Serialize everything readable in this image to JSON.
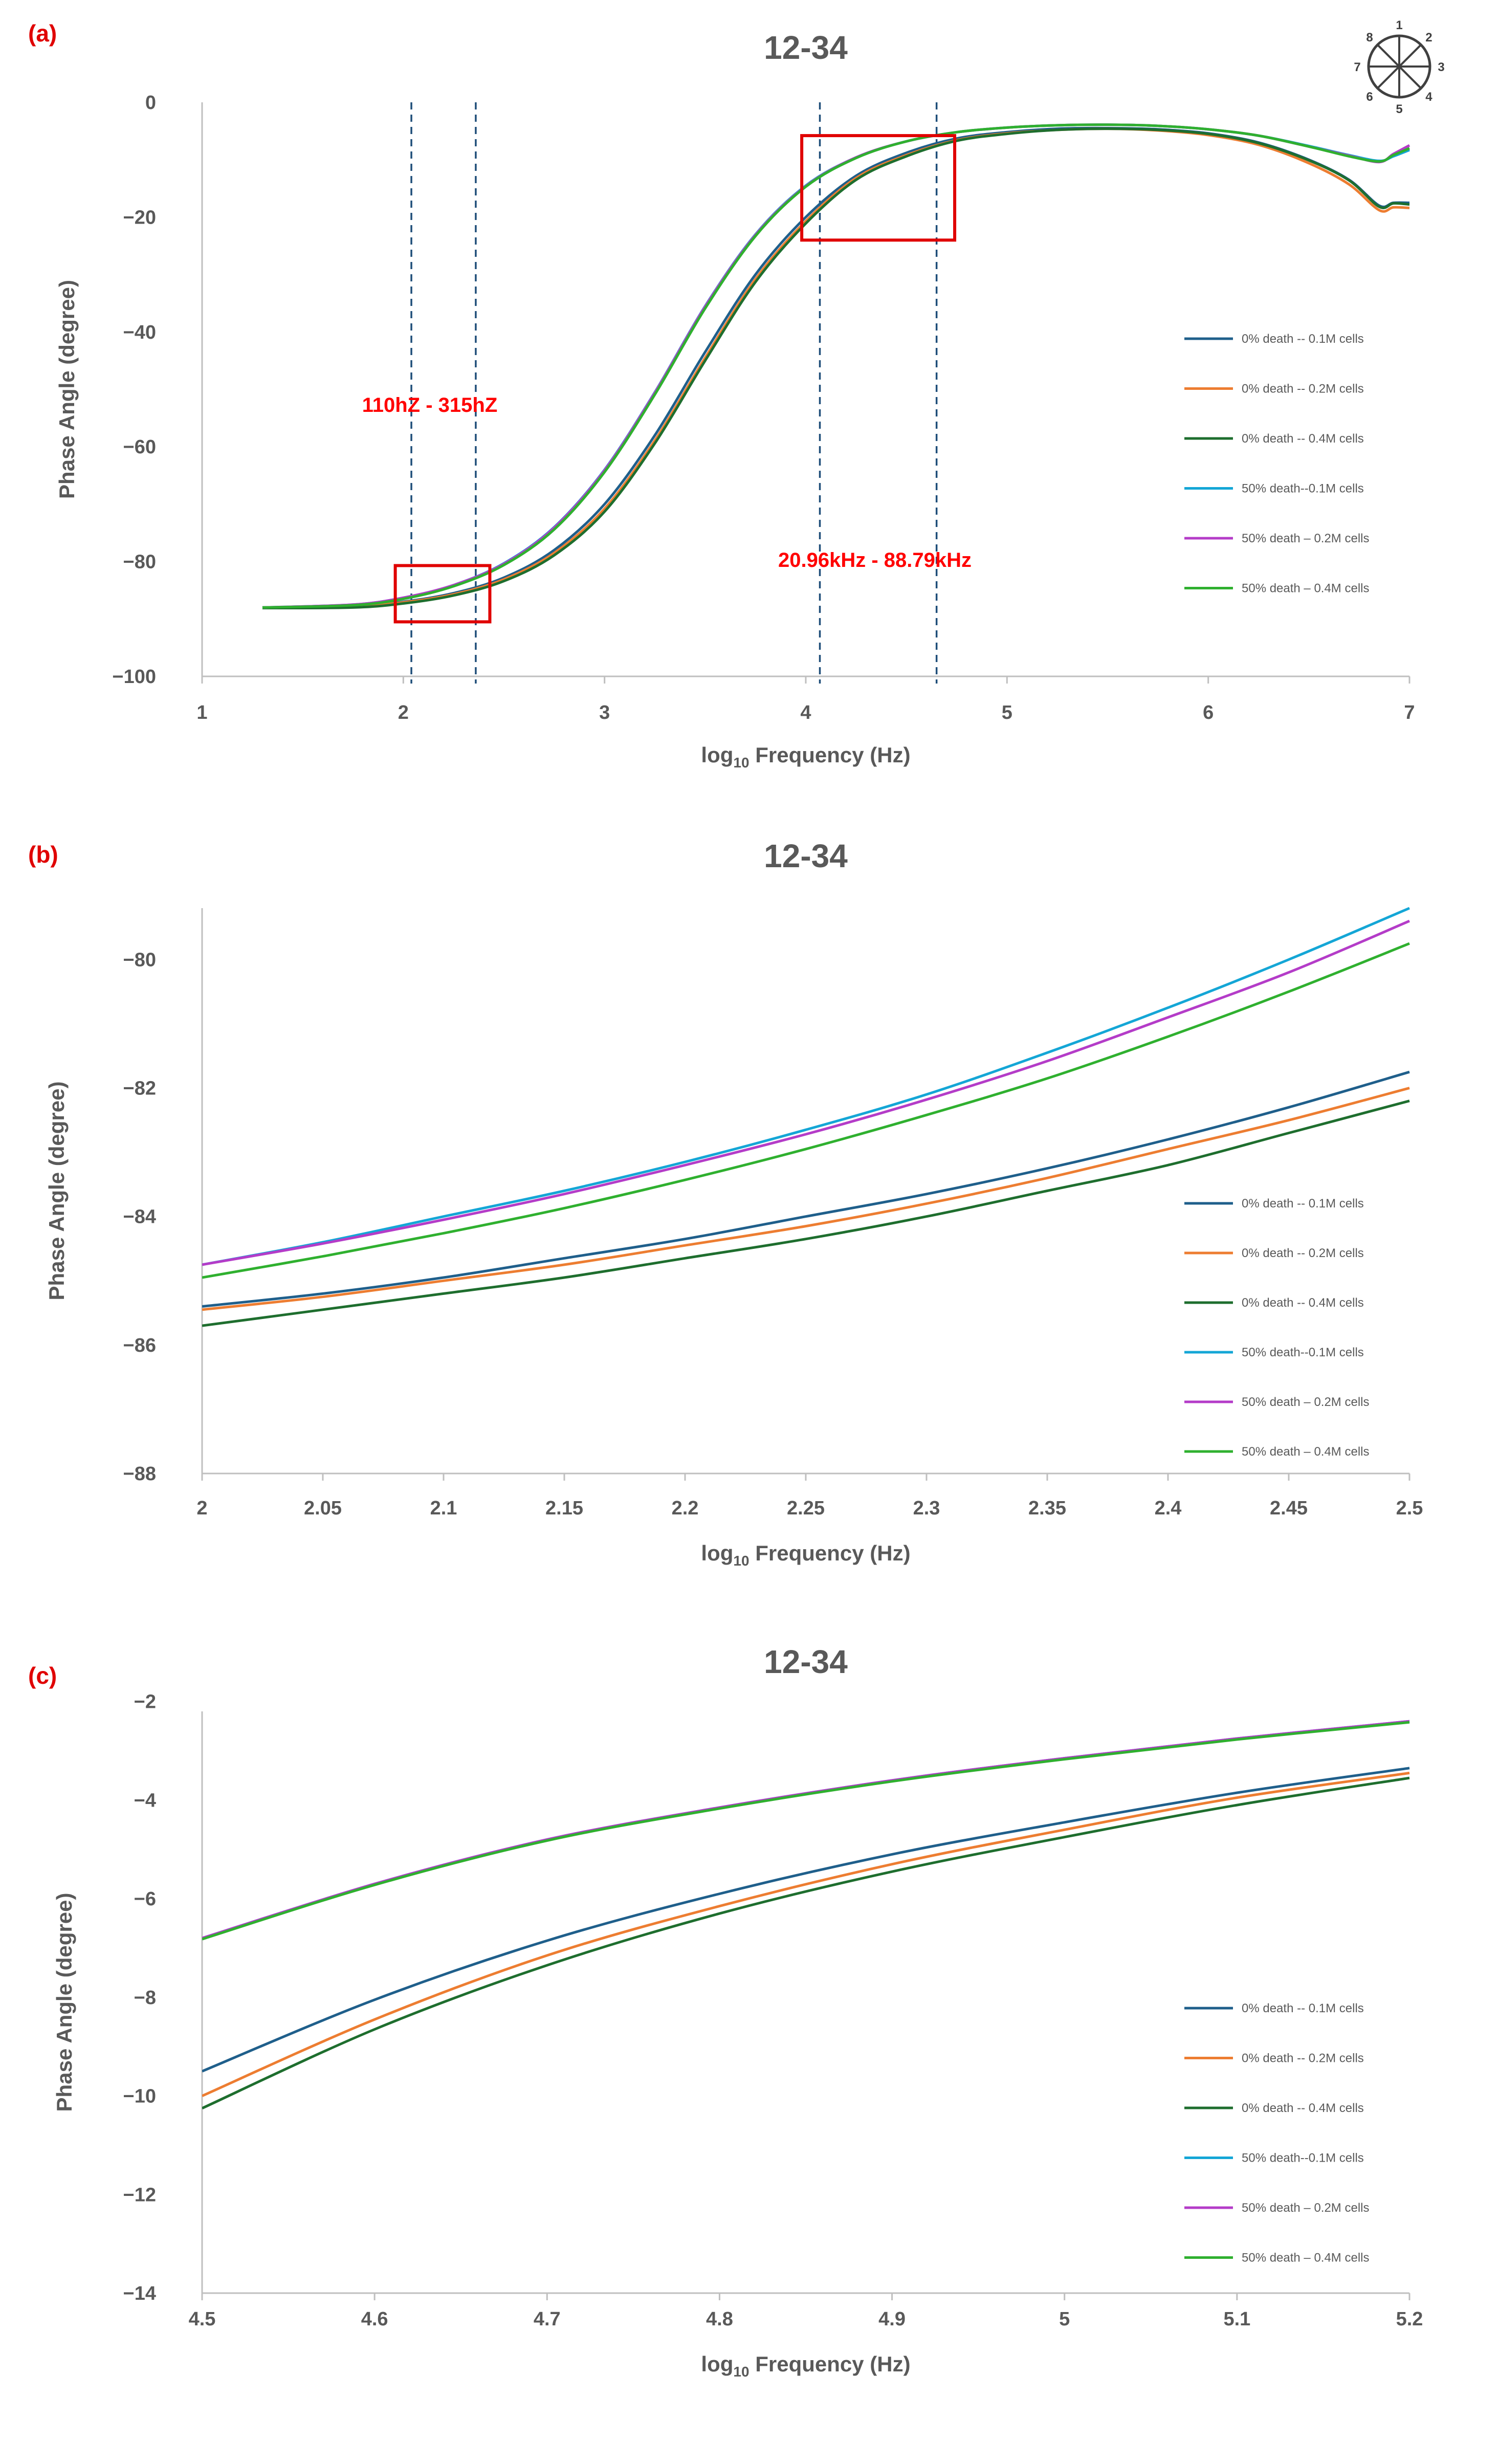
{
  "panel_labels": [
    "(a)",
    "(b)",
    "(c)"
  ],
  "compass": {
    "numbers": [
      "1",
      "2",
      "3",
      "4",
      "5",
      "6",
      "7",
      "8"
    ]
  },
  "annotations": {
    "low_band": "110hZ - 315hZ",
    "high_band": "20.96kHz - 88.79kHz"
  },
  "colors": {
    "dark_blue": "#1f5f8b",
    "orange": "#ed7d31",
    "dark_green": "#1e6e2e",
    "light_blue": "#14a6d6",
    "magenta": "#b43cc8",
    "green": "#2fb02f",
    "axis": "#bfbfbf",
    "dashed": "#1f4e79",
    "box": "#e00000"
  },
  "chart_data": [
    {
      "type": "line",
      "title": "12-34",
      "xlabel_main": "log",
      "xlabel_sub": "10",
      "xlabel_rest": " Frequency (Hz)",
      "ylabel": "Phase Angle (degree)",
      "xlim": [
        1,
        7
      ],
      "ylim": [
        -100,
        0
      ],
      "xticks": [
        "1",
        "2",
        "3",
        "4",
        "5",
        "6",
        "7"
      ],
      "yticks": [
        "0",
        "−20",
        "−40",
        "−60",
        "−80",
        "−100"
      ],
      "grid": false,
      "legend_position": "right",
      "vlines": [
        2.04,
        2.36,
        4.07,
        4.65
      ],
      "boxes": [
        {
          "x": [
            1.96,
            2.43
          ],
          "y": [
            -80.7,
            -90.5
          ]
        },
        {
          "x": [
            3.98,
            4.74
          ],
          "y": [
            -5.8,
            -24.0
          ]
        }
      ],
      "series": [
        {
          "name": "0% death -- 0.1M cells",
          "color": "#1f5f8b",
          "x": [
            1.3,
            1.75,
            2.0,
            2.25,
            2.5,
            2.75,
            3.0,
            3.25,
            3.5,
            3.75,
            4.0,
            4.25,
            4.5,
            4.75,
            5.0,
            5.25,
            5.5,
            5.75,
            6.0,
            6.25,
            6.5,
            6.7,
            6.85,
            6.92,
            7.0
          ],
          "y": [
            -88.0,
            -87.8,
            -87.0,
            -85.5,
            -82.8,
            -78.0,
            -70.0,
            -58.0,
            -43.5,
            -30.0,
            -20.0,
            -12.8,
            -8.8,
            -6.3,
            -5.2,
            -4.6,
            -4.5,
            -4.7,
            -5.4,
            -7.0,
            -10.0,
            -13.5,
            -18.0,
            -17.5,
            -17.5
          ]
        },
        {
          "name": "0% death -- 0.2M cells",
          "color": "#ed7d31",
          "x": [
            1.3,
            1.75,
            2.0,
            2.25,
            2.5,
            2.75,
            3.0,
            3.25,
            3.5,
            3.75,
            4.0,
            4.25,
            4.5,
            4.75,
            5.0,
            5.25,
            5.5,
            5.75,
            6.0,
            6.25,
            6.5,
            6.7,
            6.85,
            6.92,
            7.0
          ],
          "y": [
            -88.0,
            -87.8,
            -87.1,
            -85.7,
            -83.1,
            -78.5,
            -70.8,
            -58.9,
            -44.5,
            -30.8,
            -20.7,
            -13.2,
            -9.2,
            -6.6,
            -5.4,
            -4.8,
            -4.6,
            -4.9,
            -5.7,
            -7.4,
            -10.6,
            -14.3,
            -18.8,
            -18.3,
            -18.4
          ]
        },
        {
          "name": "0% death -- 0.4M cells",
          "color": "#1e6e2e",
          "x": [
            1.3,
            1.75,
            2.0,
            2.25,
            2.5,
            2.75,
            3.0,
            3.25,
            3.5,
            3.75,
            4.0,
            4.25,
            4.5,
            4.75,
            5.0,
            5.25,
            5.5,
            5.75,
            6.0,
            6.25,
            6.5,
            6.7,
            6.85,
            6.92,
            7.0
          ],
          "y": [
            -88.1,
            -88.0,
            -87.3,
            -85.9,
            -83.4,
            -78.9,
            -71.3,
            -59.4,
            -45.0,
            -31.3,
            -21.1,
            -13.5,
            -9.4,
            -6.7,
            -5.5,
            -4.8,
            -4.6,
            -4.8,
            -5.5,
            -7.1,
            -10.1,
            -13.6,
            -18.2,
            -17.6,
            -17.8
          ]
        },
        {
          "name": "50% death--0.1M cells",
          "color": "#14a6d6",
          "x": [
            1.3,
            1.75,
            2.0,
            2.25,
            2.5,
            2.75,
            3.0,
            3.25,
            3.5,
            3.75,
            4.0,
            4.25,
            4.5,
            4.75,
            5.0,
            5.25,
            5.5,
            5.75,
            6.0,
            6.25,
            6.5,
            6.7,
            6.85,
            6.92,
            7.0
          ],
          "y": [
            -88.0,
            -87.5,
            -86.3,
            -84.1,
            -80.3,
            -74.0,
            -64.0,
            -50.5,
            -35.5,
            -23.0,
            -14.5,
            -9.6,
            -6.8,
            -5.2,
            -4.4,
            -4.0,
            -3.9,
            -4.1,
            -4.7,
            -5.8,
            -7.6,
            -9.2,
            -10.2,
            -9.4,
            -8.3
          ]
        },
        {
          "name": "50% death – 0.2M cells",
          "color": "#b43cc8",
          "x": [
            1.3,
            1.75,
            2.0,
            2.25,
            2.5,
            2.75,
            3.0,
            3.25,
            3.5,
            3.75,
            4.0,
            4.25,
            4.5,
            4.75,
            5.0,
            5.25,
            5.5,
            5.75,
            6.0,
            6.25,
            6.5,
            6.7,
            6.85,
            6.92,
            7.0
          ],
          "y": [
            -88.0,
            -87.5,
            -86.3,
            -84.1,
            -80.4,
            -74.1,
            -64.1,
            -50.6,
            -35.6,
            -23.1,
            -14.6,
            -9.6,
            -6.8,
            -5.2,
            -4.4,
            -4.0,
            -3.9,
            -4.1,
            -4.7,
            -5.8,
            -7.7,
            -9.3,
            -10.4,
            -9.0,
            -7.5
          ]
        },
        {
          "name": "50% death – 0.4M cells",
          "color": "#2fb02f",
          "x": [
            1.3,
            1.75,
            2.0,
            2.25,
            2.5,
            2.75,
            3.0,
            3.25,
            3.5,
            3.75,
            4.0,
            4.25,
            4.5,
            4.75,
            5.0,
            5.25,
            5.5,
            5.75,
            6.0,
            6.25,
            6.5,
            6.7,
            6.85,
            6.92,
            7.0
          ],
          "y": [
            -88.0,
            -87.6,
            -86.5,
            -84.3,
            -80.6,
            -74.4,
            -64.4,
            -50.9,
            -35.9,
            -23.3,
            -14.7,
            -9.7,
            -6.8,
            -5.2,
            -4.4,
            -4.0,
            -3.9,
            -4.1,
            -4.7,
            -5.8,
            -7.7,
            -9.4,
            -10.3,
            -9.2,
            -8.0
          ]
        }
      ]
    },
    {
      "type": "line",
      "title": "12-34",
      "xlabel_main": "log",
      "xlabel_sub": "10",
      "xlabel_rest": " Frequency (Hz)",
      "ylabel": "Phase Angle (degree)",
      "xlim": [
        2,
        2.5
      ],
      "ylim": [
        -88,
        -79.2
      ],
      "xticks": [
        "2",
        "2.05",
        "2.1",
        "2.15",
        "2.2",
        "2.25",
        "2.3",
        "2.35",
        "2.4",
        "2.45",
        "2.5"
      ],
      "yticks": [
        "−80",
        "−82",
        "−84",
        "−86",
        "−88"
      ],
      "grid": false,
      "legend_position": "right",
      "series": [
        {
          "name": "0% death -- 0.1M cells",
          "color": "#1f5f8b",
          "x": [
            2.0,
            2.05,
            2.1,
            2.15,
            2.2,
            2.25,
            2.3,
            2.35,
            2.4,
            2.45,
            2.5
          ],
          "y": [
            -85.4,
            -85.2,
            -84.95,
            -84.65,
            -84.35,
            -84.0,
            -83.65,
            -83.25,
            -82.8,
            -82.3,
            -81.75
          ]
        },
        {
          "name": "0% death -- 0.2M cells",
          "color": "#ed7d31",
          "x": [
            2.0,
            2.05,
            2.1,
            2.15,
            2.2,
            2.25,
            2.3,
            2.35,
            2.4,
            2.45,
            2.5
          ],
          "y": [
            -85.45,
            -85.25,
            -85.0,
            -84.75,
            -84.45,
            -84.15,
            -83.8,
            -83.4,
            -82.95,
            -82.5,
            -82.0
          ]
        },
        {
          "name": "0% death -- 0.4M cells",
          "color": "#1e6e2e",
          "x": [
            2.0,
            2.05,
            2.1,
            2.15,
            2.2,
            2.25,
            2.3,
            2.35,
            2.4,
            2.45,
            2.5
          ],
          "y": [
            -85.7,
            -85.45,
            -85.2,
            -84.95,
            -84.65,
            -84.35,
            -84.0,
            -83.6,
            -83.2,
            -82.7,
            -82.2
          ]
        },
        {
          "name": "50% death--0.1M cells",
          "color": "#14a6d6",
          "x": [
            2.0,
            2.05,
            2.1,
            2.15,
            2.2,
            2.25,
            2.3,
            2.35,
            2.4,
            2.45,
            2.5
          ],
          "y": [
            -84.75,
            -84.4,
            -84.0,
            -83.6,
            -83.15,
            -82.65,
            -82.1,
            -81.45,
            -80.75,
            -80.0,
            -79.2
          ]
        },
        {
          "name": "50% death – 0.2M cells",
          "color": "#b43cc8",
          "x": [
            2.0,
            2.05,
            2.1,
            2.15,
            2.2,
            2.25,
            2.3,
            2.35,
            2.4,
            2.45,
            2.5
          ],
          "y": [
            -84.75,
            -84.42,
            -84.05,
            -83.65,
            -83.2,
            -82.72,
            -82.18,
            -81.58,
            -80.9,
            -80.2,
            -79.4
          ]
        },
        {
          "name": "50% death – 0.4M cells",
          "color": "#2fb02f",
          "x": [
            2.0,
            2.05,
            2.1,
            2.15,
            2.2,
            2.25,
            2.3,
            2.35,
            2.4,
            2.45,
            2.5
          ],
          "y": [
            -84.95,
            -84.62,
            -84.26,
            -83.87,
            -83.43,
            -82.95,
            -82.42,
            -81.85,
            -81.2,
            -80.5,
            -79.75
          ]
        }
      ]
    },
    {
      "type": "line",
      "title": "12-34",
      "xlabel_main": "log",
      "xlabel_sub": "10",
      "xlabel_rest": " Frequency (Hz)",
      "ylabel": "Phase Angle (degree)",
      "xlim": [
        4.5,
        5.2
      ],
      "ylim": [
        -14,
        -2.2
      ],
      "xticks": [
        "4.5",
        "4.6",
        "4.7",
        "4.8",
        "4.9",
        "5",
        "5.1",
        "5.2"
      ],
      "yticks": [
        "−2",
        "−4",
        "−6",
        "−8",
        "−10",
        "−12",
        "−14"
      ],
      "grid": false,
      "legend_position": "right",
      "series": [
        {
          "name": "0% death -- 0.1M cells",
          "color": "#1f5f8b",
          "x": [
            4.5,
            4.6,
            4.7,
            4.8,
            4.9,
            5.0,
            5.1,
            5.2
          ],
          "y": [
            -9.5,
            -8.05,
            -6.85,
            -5.9,
            -5.1,
            -4.45,
            -3.85,
            -3.35
          ]
        },
        {
          "name": "0% death -- 0.2M cells",
          "color": "#ed7d31",
          "x": [
            4.5,
            4.6,
            4.7,
            4.8,
            4.9,
            5.0,
            5.1,
            5.2
          ],
          "y": [
            -10.0,
            -8.45,
            -7.15,
            -6.15,
            -5.3,
            -4.6,
            -3.95,
            -3.45
          ]
        },
        {
          "name": "0% death -- 0.4M cells",
          "color": "#1e6e2e",
          "x": [
            4.5,
            4.6,
            4.7,
            4.8,
            4.9,
            5.0,
            5.1,
            5.2
          ],
          "y": [
            -10.25,
            -8.65,
            -7.35,
            -6.3,
            -5.45,
            -4.75,
            -4.1,
            -3.55
          ]
        },
        {
          "name": "50% death--0.1M cells",
          "color": "#14a6d6",
          "x": [
            4.5,
            4.6,
            4.7,
            4.8,
            4.9,
            5.0,
            5.1,
            5.2
          ],
          "y": [
            -6.8,
            -5.7,
            -4.8,
            -4.15,
            -3.6,
            -3.15,
            -2.75,
            -2.4
          ]
        },
        {
          "name": "50% death – 0.2M cells",
          "color": "#b43cc8",
          "x": [
            4.5,
            4.6,
            4.7,
            4.8,
            4.9,
            5.0,
            5.1,
            5.2
          ],
          "y": [
            -6.8,
            -5.7,
            -4.8,
            -4.15,
            -3.6,
            -3.15,
            -2.75,
            -2.4
          ]
        },
        {
          "name": "50% death – 0.4M cells",
          "color": "#2fb02f",
          "x": [
            4.5,
            4.6,
            4.7,
            4.8,
            4.9,
            5.0,
            5.1,
            5.2
          ],
          "y": [
            -6.82,
            -5.72,
            -4.82,
            -4.17,
            -3.62,
            -3.17,
            -2.77,
            -2.42
          ]
        }
      ]
    }
  ]
}
